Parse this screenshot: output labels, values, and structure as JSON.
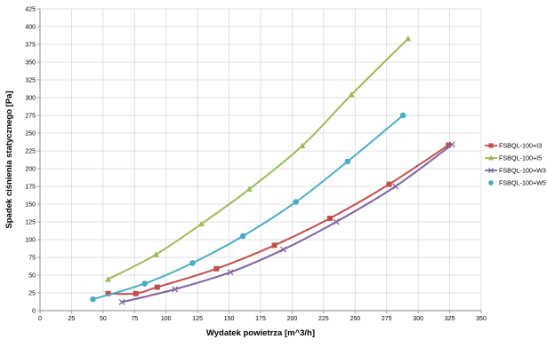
{
  "chart_data": {
    "type": "line",
    "title": "",
    "xlabel": "Wydatek powietrza [m^3/h]",
    "ylabel": "Spadek ciśnienia statycznego [Pa]",
    "xlim": [
      0,
      350
    ],
    "ylim": [
      0,
      425
    ],
    "x_ticks": [
      "0",
      "25",
      "50",
      "75",
      "100",
      "125",
      "150",
      "175",
      "200",
      "225",
      "250",
      "275",
      "300",
      "325",
      "350"
    ],
    "y_ticks": [
      "0",
      "25",
      "50",
      "75",
      "100",
      "125",
      "150",
      "175",
      "200",
      "225",
      "250",
      "275",
      "300",
      "325",
      "350",
      "375",
      "400",
      "425"
    ],
    "grid": true,
    "legend_position": "right",
    "series": [
      {
        "name": "FSBQL-100+I3",
        "color": "#c0504d",
        "marker": "square",
        "points": [
          [
            54,
            24
          ],
          [
            76,
            24
          ],
          [
            93,
            33
          ],
          [
            140,
            59
          ],
          [
            186,
            92
          ],
          [
            230,
            130
          ],
          [
            277,
            178
          ],
          [
            324,
            233
          ]
        ]
      },
      {
        "name": "FSBQL-100+I5",
        "color": "#9bbb59",
        "marker": "triangle",
        "points": [
          [
            54,
            44
          ],
          [
            92,
            79
          ],
          [
            128,
            122
          ],
          [
            166,
            171
          ],
          [
            208,
            232
          ],
          [
            247,
            304
          ],
          [
            292,
            383
          ]
        ]
      },
      {
        "name": "FSBQL-100+W3",
        "color": "#8064a2",
        "marker": "x",
        "points": [
          [
            65,
            12
          ],
          [
            107,
            30
          ],
          [
            151,
            54
          ],
          [
            193,
            86
          ],
          [
            235,
            125
          ],
          [
            282,
            175
          ],
          [
            327,
            234
          ]
        ]
      },
      {
        "name": "FSBQL-100+W5",
        "color": "#4bacc6",
        "marker": "circle",
        "points": [
          [
            42,
            16
          ],
          [
            83,
            38
          ],
          [
            121,
            67
          ],
          [
            161,
            105
          ],
          [
            203,
            153
          ],
          [
            244,
            210
          ],
          [
            288,
            275
          ]
        ]
      }
    ]
  }
}
